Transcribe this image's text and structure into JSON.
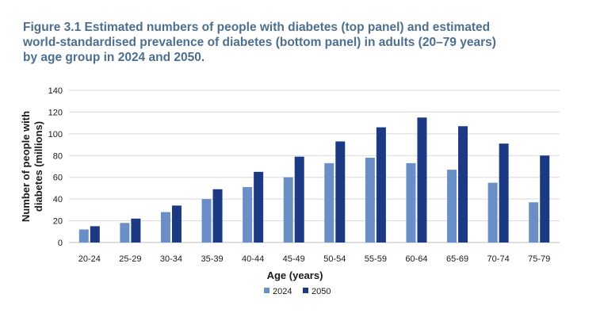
{
  "figure": {
    "title": "Figure 3.1 Estimated numbers of people with diabetes (top panel) and estimated world-standardised prevalence of diabetes (bottom panel) in adults (20–79 years) by age group in 2024 and 2050."
  },
  "chart_data": {
    "type": "bar",
    "xlabel": "Age (years)",
    "ylabel_lines": [
      "Number of people with",
      "diabetes (millions)"
    ],
    "ylim": [
      0,
      140
    ],
    "yticks": [
      0,
      20,
      40,
      60,
      80,
      100,
      120,
      140
    ],
    "grid": true,
    "legend_position": "bottom-center",
    "categories": [
      "20-24",
      "25-29",
      "30-34",
      "35-39",
      "40-44",
      "45-49",
      "50-54",
      "55-59",
      "60-64",
      "65-69",
      "70-74",
      "75-79"
    ],
    "series": [
      {
        "name": "2024",
        "color": "#6a8fc7",
        "values": [
          12,
          18,
          28,
          40,
          51,
          60,
          73,
          78,
          73,
          67,
          55,
          37
        ]
      },
      {
        "name": "2050",
        "color": "#1b3a83",
        "values": [
          15,
          22,
          34,
          49,
          65,
          79,
          93,
          106,
          115,
          107,
          91,
          80
        ]
      }
    ]
  }
}
